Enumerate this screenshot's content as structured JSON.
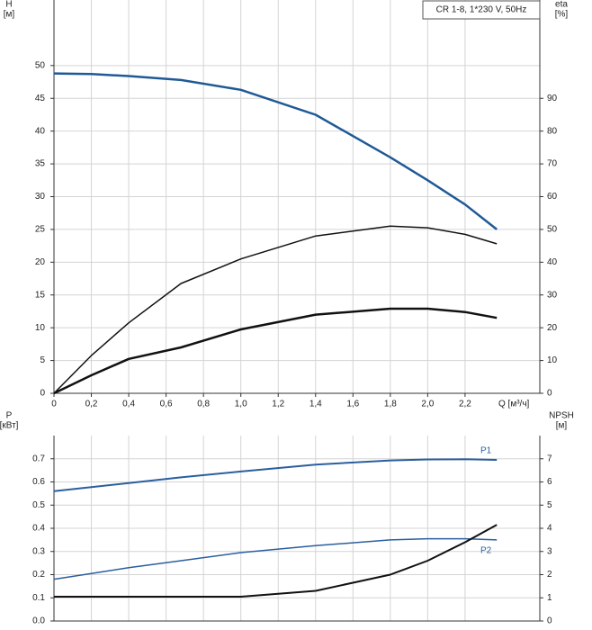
{
  "chart_data": [
    {
      "type": "line",
      "annotation": "CR 1-8, 1*230 V, 50Hz",
      "ylabel": [
        "H",
        "[м]"
      ],
      "y2label": [
        "eta",
        "[%]"
      ],
      "xlabel": "Q [м³/ч]",
      "x": [
        0,
        0.2,
        0.4,
        0.68,
        1.0,
        1.4,
        1.8,
        2.0,
        2.2,
        2.37
      ],
      "series": [
        {
          "color": "#1f5a96",
          "width": 2.5,
          "values": [
            48.8,
            48.7,
            48.4,
            47.8,
            46.3,
            42.5,
            36,
            32.5,
            28.8,
            25
          ]
        },
        {
          "color": "#111111",
          "width": 1.5,
          "axis": "y2",
          "values": [
            0,
            11.5,
            21.5,
            33.5,
            41,
            48,
            51,
            50.5,
            48.5,
            45.6
          ]
        },
        {
          "color": "#111111",
          "width": 2.5,
          "axis": "y2",
          "values": [
            0,
            5.5,
            10.5,
            14,
            19.5,
            24,
            25.8,
            25.8,
            24.8,
            23
          ]
        }
      ],
      "xlim": [
        0,
        2.6
      ],
      "xticks": [
        0,
        {
          "value": 0.2,
          "label": "0,2"
        },
        {
          "value": 0.4,
          "label": "0,4"
        },
        {
          "value": 0.6,
          "label": "0,6"
        },
        {
          "value": 0.8,
          "label": "0,8"
        },
        {
          "value": 1.0,
          "label": "1,0"
        },
        {
          "value": 1.2,
          "label": "1,2"
        },
        {
          "value": 1.4,
          "label": "1,4"
        },
        {
          "value": 1.6,
          "label": "1,6"
        },
        {
          "value": 1.8,
          "label": "1,8"
        },
        {
          "value": 2.0,
          "label": "2,0"
        },
        {
          "value": 2.2,
          "label": "2,2"
        }
      ],
      "ylim": [
        0,
        60
      ],
      "yticks": [
        0,
        5,
        10,
        15,
        20,
        25,
        30,
        35,
        40,
        45,
        50
      ],
      "y2lim": [
        0,
        120
      ],
      "y2ticks": [
        0,
        10,
        20,
        30,
        40,
        50,
        60,
        70,
        80,
        90
      ],
      "grid": true
    },
    {
      "type": "line",
      "ylabel": [
        "P",
        "[кВт]"
      ],
      "y2label": [
        "NPSH",
        "[м]"
      ],
      "x": [
        0,
        0.2,
        0.4,
        0.68,
        1.0,
        1.4,
        1.8,
        2.0,
        2.2,
        2.37
      ],
      "series": [
        {
          "name": "P1",
          "color": "#2a5f9e",
          "width": 2,
          "values": [
            0.56,
            0.578,
            0.595,
            0.62,
            0.645,
            0.675,
            0.693,
            0.697,
            0.698,
            0.695
          ]
        },
        {
          "name": "P2",
          "color": "#2a5f9e",
          "width": 1.5,
          "values": [
            0.18,
            0.205,
            0.23,
            0.26,
            0.295,
            0.325,
            0.35,
            0.355,
            0.355,
            0.35
          ]
        },
        {
          "color": "#111111",
          "width": 2,
          "axis": "y2",
          "values": [
            1.05,
            1.05,
            1.05,
            1.05,
            1.05,
            1.3,
            2.0,
            2.6,
            3.4,
            4.15
          ]
        }
      ],
      "xlim": [
        0,
        2.6
      ],
      "ylim": [
        0,
        0.8
      ],
      "yticks": [
        {
          "value": 0,
          "label": "0.0"
        },
        0.1,
        0.2,
        0.3,
        0.4,
        0.5,
        0.6,
        0.7
      ],
      "y2lim": [
        0,
        8
      ],
      "y2ticks": [
        0,
        1,
        2,
        3,
        4,
        5,
        6,
        7
      ],
      "grid": true
    }
  ]
}
